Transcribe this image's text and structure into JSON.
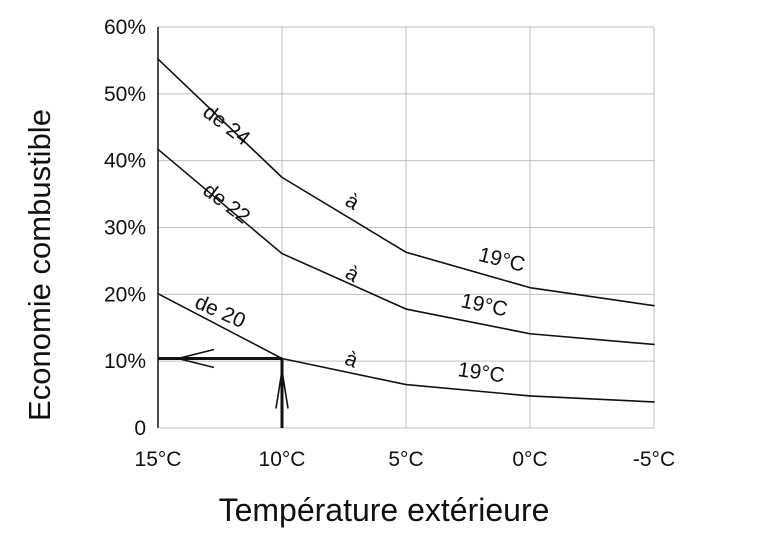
{
  "chart_data": {
    "type": "line",
    "xlabel": "Température extérieure",
    "ylabel": "Economie combustible",
    "x": [
      15,
      10,
      5,
      0,
      -5
    ],
    "x_tick_labels": [
      "15°C",
      "10°C",
      "5°C",
      "0°C",
      "-5°C"
    ],
    "xlim": [
      15,
      -5
    ],
    "ylim": [
      0,
      60
    ],
    "y_ticks": [
      0,
      10,
      20,
      30,
      40,
      50,
      60
    ],
    "y_tick_labels": [
      "0",
      "10%",
      "20%",
      "30%",
      "40%",
      "50%",
      "60%"
    ],
    "grid": true,
    "legend": "none",
    "series": [
      {
        "values": [
          55.2,
          37.5,
          26.3,
          21.0,
          18.3
        ]
      },
      {
        "values": [
          41.7,
          26.1,
          17.8,
          14.1,
          12.5
        ]
      },
      {
        "values": [
          20.1,
          10.4,
          6.5,
          4.8,
          3.9
        ]
      }
    ],
    "annotations": [
      {
        "text": "de 24",
        "x": 12.4,
        "y": 44.5,
        "angle": 37
      },
      {
        "text": "à",
        "x": 7.3,
        "y": 33.0,
        "angle": 30
      },
      {
        "text": "19°C",
        "x": 1.2,
        "y": 24.2,
        "angle": 14
      },
      {
        "text": "de 22",
        "x": 12.4,
        "y": 32.8,
        "angle": 37
      },
      {
        "text": "à",
        "x": 7.3,
        "y": 22.2,
        "angle": 30
      },
      {
        "text": "19°C",
        "x": 1.9,
        "y": 17.4,
        "angle": 12
      },
      {
        "text": "de 20",
        "x": 12.6,
        "y": 16.5,
        "angle": 24
      },
      {
        "text": "à",
        "x": 7.3,
        "y": 9.3,
        "angle": 22
      },
      {
        "text": "19°C",
        "x": 2.0,
        "y": 7.3,
        "angle": 8
      }
    ],
    "reading_guide": {
      "x": 10,
      "y": 10.4
    },
    "colors": {
      "line": "#111111",
      "grid": "#bfbfbf",
      "axis": "#111111"
    }
  }
}
